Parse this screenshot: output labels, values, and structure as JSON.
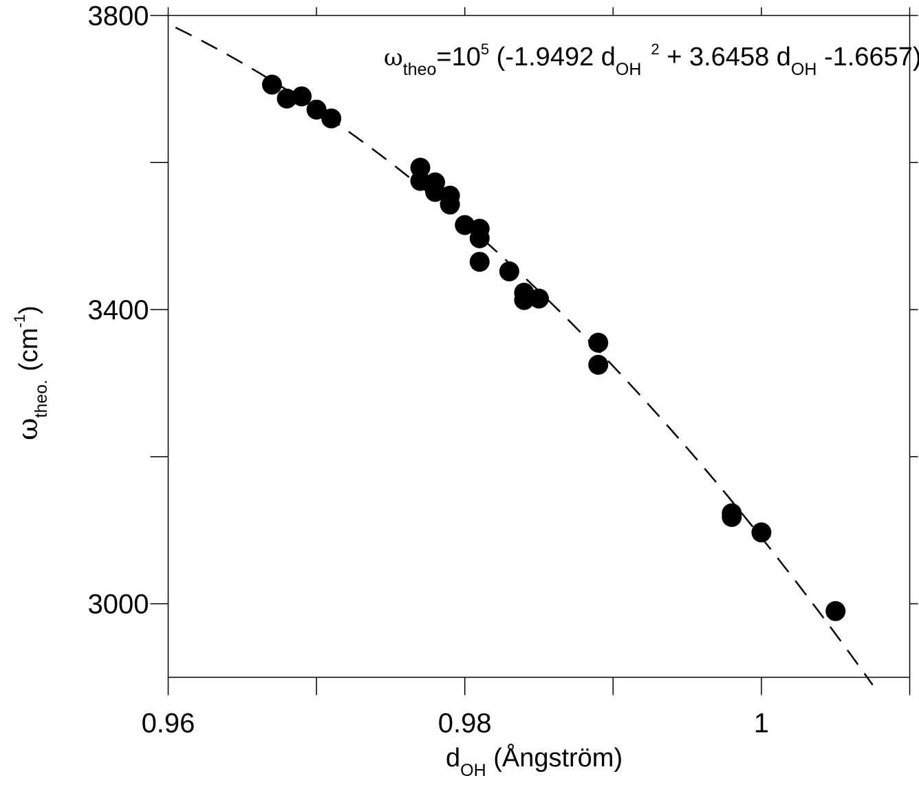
{
  "chart_data": {
    "type": "scatter",
    "title": "",
    "xlabel": {
      "main": "d",
      "subscript": "OH",
      "suffix": " (Ångström)"
    },
    "ylabel": {
      "symbol": "ω",
      "subscript": "theo.",
      "unit_base": "(cm",
      "unit_sup": "-1",
      "unit_close": ")"
    },
    "xlim": [
      0.96,
      1.01
    ],
    "ylim": [
      2900,
      3800
    ],
    "x_ticks": [
      0.96,
      0.98,
      1.0
    ],
    "x_tick_labels": [
      "0.96",
      "0.98",
      "1"
    ],
    "y_ticks": [
      3000,
      3400,
      3800
    ],
    "y_tick_labels": [
      "3000",
      "3400",
      "3800"
    ],
    "grid": false,
    "legend": "none",
    "annotation": {
      "parts": [
        {
          "text": "ω",
          "style": "omega"
        },
        {
          "text": "theo",
          "style": "sub"
        },
        {
          "text": "=10",
          "style": "normal"
        },
        {
          "text": "5",
          "style": "sup"
        },
        {
          "text": " (-1.9492 d",
          "style": "normal"
        },
        {
          "text": "OH",
          "style": "sub"
        },
        {
          "text": "2",
          "style": "sup"
        },
        {
          "text": " + 3.6458 d",
          "style": "normal"
        },
        {
          "text": "OH",
          "style": "sub"
        },
        {
          "text": " -1.6657)",
          "style": "normal"
        }
      ]
    },
    "fit": {
      "type": "quadratic",
      "coefficients": {
        "a": -1.9492,
        "b": 3.6458,
        "c": -1.6657
      },
      "scale": 100000,
      "x_range": [
        0.9605,
        1.0075
      ],
      "line_style": "dashed",
      "color": "#000000"
    },
    "series": [
      {
        "marker": "filled-circle",
        "color": "#000000",
        "points": [
          {
            "x": 0.967,
            "y": 3706
          },
          {
            "x": 0.968,
            "y": 3687
          },
          {
            "x": 0.969,
            "y": 3690
          },
          {
            "x": 0.97,
            "y": 3672
          },
          {
            "x": 0.971,
            "y": 3660
          },
          {
            "x": 0.977,
            "y": 3593
          },
          {
            "x": 0.977,
            "y": 3575
          },
          {
            "x": 0.978,
            "y": 3573
          },
          {
            "x": 0.978,
            "y": 3560
          },
          {
            "x": 0.979,
            "y": 3555
          },
          {
            "x": 0.979,
            "y": 3543
          },
          {
            "x": 0.98,
            "y": 3515
          },
          {
            "x": 0.981,
            "y": 3510
          },
          {
            "x": 0.981,
            "y": 3497
          },
          {
            "x": 0.981,
            "y": 3465
          },
          {
            "x": 0.983,
            "y": 3452
          },
          {
            "x": 0.984,
            "y": 3423
          },
          {
            "x": 0.984,
            "y": 3413
          },
          {
            "x": 0.985,
            "y": 3415
          },
          {
            "x": 0.989,
            "y": 3355
          },
          {
            "x": 0.989,
            "y": 3325
          },
          {
            "x": 0.998,
            "y": 3123
          },
          {
            "x": 0.998,
            "y": 3118
          },
          {
            "x": 1.0,
            "y": 3097
          },
          {
            "x": 1.005,
            "y": 2990
          }
        ]
      }
    ]
  }
}
